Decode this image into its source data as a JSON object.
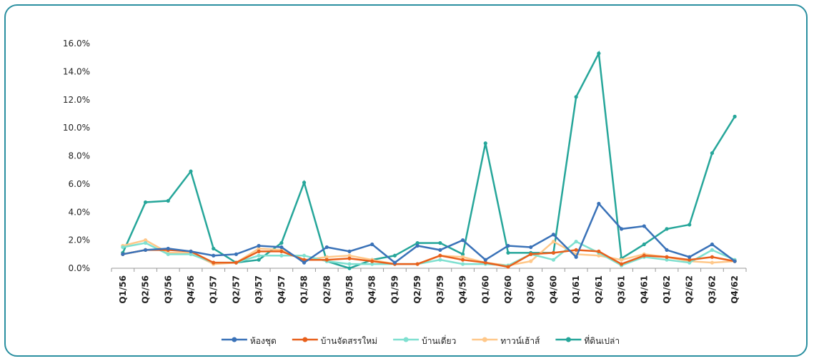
{
  "chart_data": {
    "type": "line",
    "categories": [
      "Q1/56",
      "Q2/56",
      "Q3/56",
      "Q4/56",
      "Q1/57",
      "Q2/57",
      "Q3/57",
      "Q4/57",
      "Q1/58",
      "Q2/58",
      "Q3/58",
      "Q4/58",
      "Q1/59",
      "Q2/59",
      "Q3/59",
      "Q4/59",
      "Q1/60",
      "Q2/60",
      "Q3/60",
      "Q4/60",
      "Q1/61",
      "Q2/61",
      "Q3/61",
      "Q4/61",
      "Q1/62",
      "Q2/62",
      "Q3/62",
      "Q4/62"
    ],
    "series": [
      {
        "name": "ห้องชุด",
        "color": "#3a72b8",
        "values": [
          1.0,
          1.3,
          1.4,
          1.2,
          0.9,
          1.0,
          1.6,
          1.5,
          0.4,
          1.5,
          1.2,
          1.7,
          0.4,
          1.6,
          1.3,
          2.0,
          0.6,
          1.6,
          1.5,
          2.4,
          0.8,
          4.6,
          2.8,
          3.0,
          1.3,
          0.8,
          1.7,
          0.5
        ]
      },
      {
        "name": "บ้านจัดสรรใหม่",
        "color": "#e8601c",
        "values": [
          1.0,
          1.3,
          1.3,
          1.2,
          0.4,
          0.4,
          1.2,
          1.2,
          0.6,
          0.6,
          0.7,
          0.5,
          0.3,
          0.3,
          0.9,
          0.6,
          0.4,
          0.1,
          1.0,
          1.1,
          1.3,
          1.2,
          0.3,
          0.9,
          0.8,
          0.6,
          0.8,
          0.5
        ]
      },
      {
        "name": "บ้านเดี่ยว",
        "color": "#7fe0d0",
        "values": [
          1.5,
          1.8,
          1.0,
          1.0,
          0.4,
          0.4,
          0.9,
          0.9,
          0.9,
          0.5,
          0.3,
          0.3,
          0.3,
          0.3,
          0.6,
          0.3,
          0.3,
          0.2,
          1.0,
          0.6,
          1.9,
          1.1,
          0.2,
          0.8,
          0.6,
          0.4,
          1.3,
          0.6
        ]
      },
      {
        "name": "ทาวน์เฮ้าส์",
        "color": "#ffc88a",
        "values": [
          1.6,
          2.0,
          1.1,
          1.1,
          0.3,
          0.4,
          1.4,
          1.3,
          0.6,
          0.8,
          0.9,
          0.6,
          0.3,
          0.3,
          0.9,
          0.8,
          0.4,
          0.2,
          0.5,
          1.9,
          1.0,
          0.9,
          0.6,
          1.0,
          0.8,
          0.5,
          0.4,
          0.5
        ]
      },
      {
        "name": "ที่ดินเปล่า",
        "color": "#26a69a",
        "values": [
          1.1,
          4.7,
          4.8,
          6.9,
          1.4,
          0.4,
          0.6,
          1.8,
          6.1,
          0.5,
          0.0,
          0.6,
          0.9,
          1.8,
          1.8,
          1.0,
          8.9,
          1.1,
          1.1,
          1.1,
          12.2,
          15.3,
          0.7,
          1.7,
          2.8,
          3.1,
          8.2,
          10.8
        ]
      }
    ],
    "ylim": [
      0,
      16
    ],
    "yticks": [
      {
        "value": 0,
        "label": "0.0%"
      },
      {
        "value": 2,
        "label": "2.0%"
      },
      {
        "value": 4,
        "label": "4.0%"
      },
      {
        "value": 6,
        "label": "6.0%"
      },
      {
        "value": 8,
        "label": "8.0%"
      },
      {
        "value": 10,
        "label": "10.0%"
      },
      {
        "value": 12,
        "label": "12.0%"
      },
      {
        "value": 14,
        "label": "14.0%"
      },
      {
        "value": 16,
        "label": "16.0%"
      }
    ],
    "grid": false,
    "legend": "bottom"
  }
}
